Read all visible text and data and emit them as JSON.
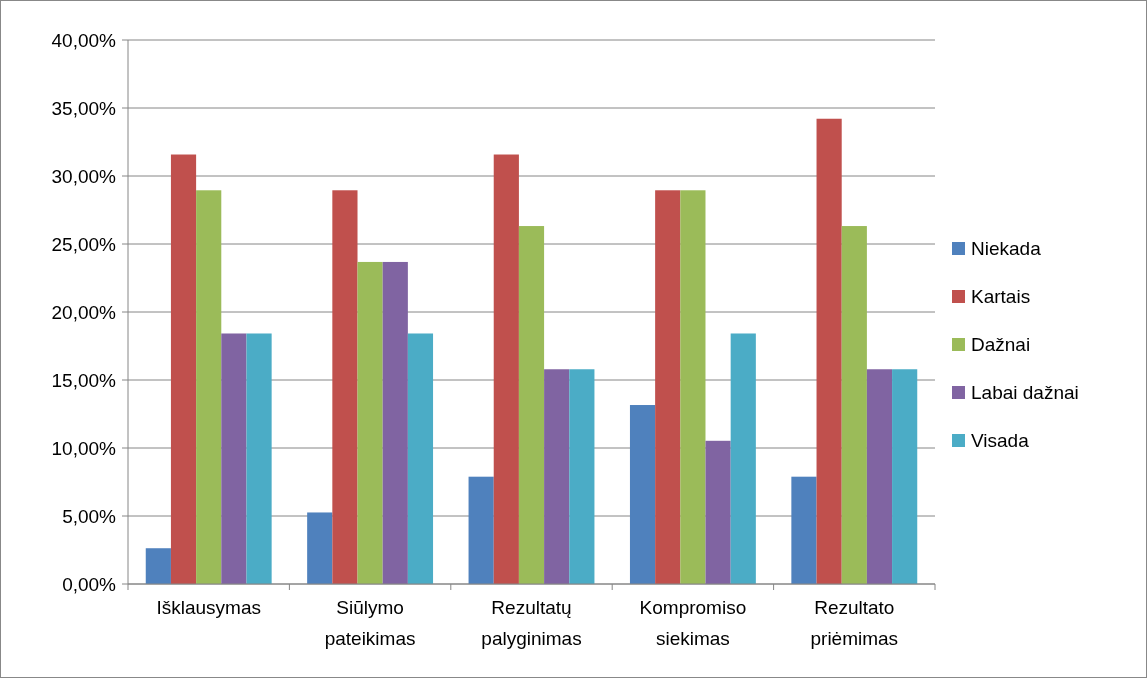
{
  "chart_data": {
    "type": "bar",
    "categories": [
      "Išklausymas",
      "Siūlymo pateikimas",
      "Rezultatų palyginimas",
      "Kompromiso siekimas",
      "Rezultato priėmimas"
    ],
    "series": [
      {
        "name": "Niekada",
        "color": "#4f81bd",
        "values": [
          2.63,
          5.26,
          7.89,
          13.16,
          7.89
        ]
      },
      {
        "name": "Kartais",
        "color": "#c0504d",
        "values": [
          31.58,
          28.95,
          31.58,
          28.95,
          34.21
        ]
      },
      {
        "name": "Dažnai",
        "color": "#9bbb59",
        "values": [
          28.95,
          23.68,
          26.32,
          28.95,
          26.32
        ]
      },
      {
        "name": "Labai dažnai",
        "color": "#8064a2",
        "values": [
          18.42,
          23.68,
          15.79,
          10.53,
          15.79
        ]
      },
      {
        "name": "Visada",
        "color": "#4bacc6",
        "values": [
          18.42,
          18.42,
          15.79,
          18.42,
          15.79
        ]
      }
    ],
    "ylim": [
      0,
      40
    ],
    "yticks": [
      {
        "value": 0,
        "label": "0,00%"
      },
      {
        "value": 5,
        "label": "5,00%"
      },
      {
        "value": 10,
        "label": "10,00%"
      },
      {
        "value": 15,
        "label": "15,00%"
      },
      {
        "value": 20,
        "label": "20,00%"
      },
      {
        "value": 25,
        "label": "25,00%"
      },
      {
        "value": 30,
        "label": "30,00%"
      },
      {
        "value": 35,
        "label": "35,00%"
      },
      {
        "value": 40,
        "label": "40,00%"
      }
    ],
    "grid": "y",
    "legend": "right"
  }
}
